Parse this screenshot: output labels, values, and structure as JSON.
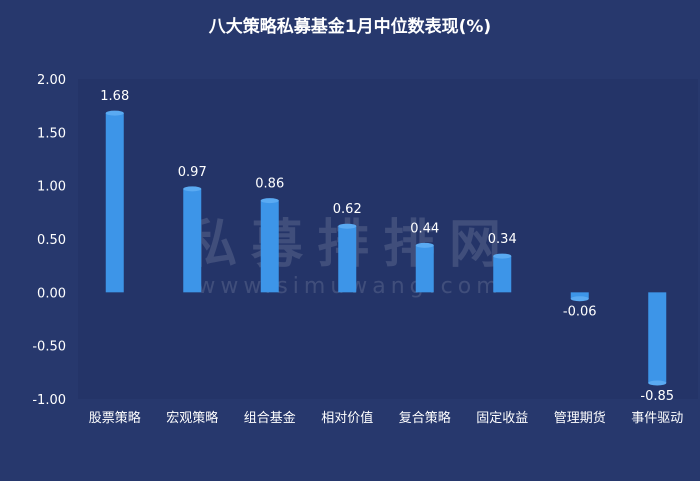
{
  "chart_data": {
    "type": "bar",
    "title": "八大策略私募基金1月中位数表现(%)",
    "categories": [
      "股票策略",
      "宏观策略",
      "组合基金",
      "相对价值",
      "复合策略",
      "固定收益",
      "管理期货",
      "事件驱动"
    ],
    "values": [
      1.68,
      0.97,
      0.86,
      0.62,
      0.44,
      0.34,
      -0.06,
      -0.85
    ],
    "data_labels": [
      "1.68",
      "0.97",
      "0.86",
      "0.62",
      "0.44",
      "0.34",
      "-0.06",
      "-0.85"
    ],
    "ylim": [
      -1.0,
      2.0
    ],
    "yticks": [
      "2.00",
      "1.50",
      "1.00",
      "0.50",
      "0.00",
      "-0.50",
      "-1.00"
    ],
    "ytick_values": [
      2.0,
      1.5,
      1.0,
      0.5,
      0.0,
      -0.5,
      -1.0
    ],
    "xlabel": "",
    "ylabel": "",
    "grid": false,
    "legend": "none",
    "colors": {
      "background": "#27386d",
      "plot_background": "#243468",
      "bar": "#3d95e8",
      "text": "#ffffff"
    }
  },
  "watermark": {
    "cn": "私募排排网",
    "en": "www.simuwang.com"
  }
}
